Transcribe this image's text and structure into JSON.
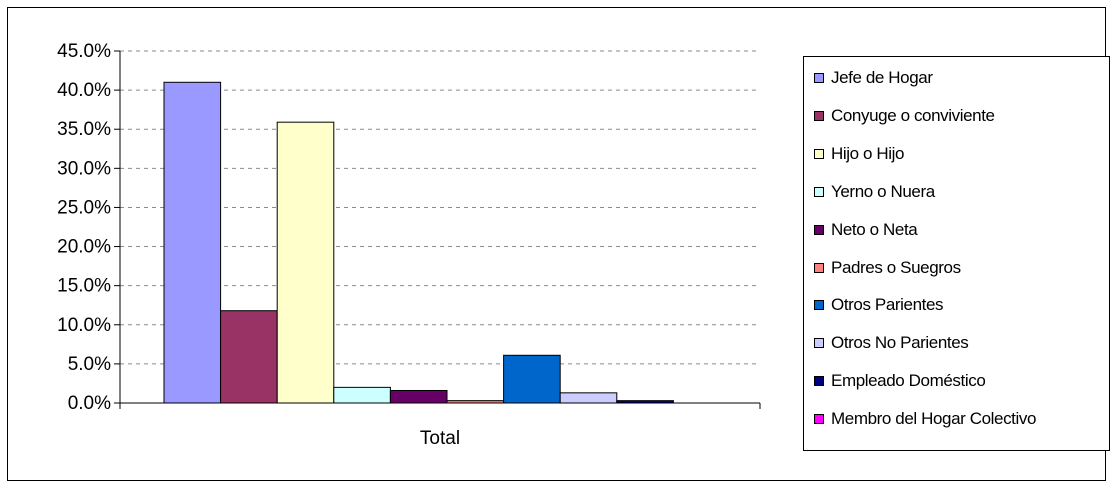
{
  "chart_data": {
    "type": "bar",
    "categories": [
      "Total"
    ],
    "series": [
      {
        "name": "Jefe de Hogar",
        "values": [
          41.0
        ],
        "color": "#9999ff"
      },
      {
        "name": "Conyuge o conviviente",
        "values": [
          11.8
        ],
        "color": "#993366"
      },
      {
        "name": "Hijo o Hijo",
        "values": [
          35.9
        ],
        "color": "#ffffcc"
      },
      {
        "name": "Yerno o Nuera",
        "values": [
          2.0
        ],
        "color": "#ccffff"
      },
      {
        "name": "Neto o Neta",
        "values": [
          1.6
        ],
        "color": "#660066"
      },
      {
        "name": "Padres o Suegros",
        "values": [
          0.3
        ],
        "color": "#ff8080"
      },
      {
        "name": "Otros Parientes",
        "values": [
          6.1
        ],
        "color": "#0066cc"
      },
      {
        "name": "Otros No Parientes",
        "values": [
          1.3
        ],
        "color": "#ccccff"
      },
      {
        "name": "Empleado Doméstico",
        "values": [
          0.3
        ],
        "color": "#000080"
      },
      {
        "name": "Membro del Hogar Colectivo",
        "values": [
          0.0
        ],
        "color": "#ff00ff"
      }
    ],
    "yticks": [
      "0.0%",
      "5.0%",
      "10.0%",
      "15.0%",
      "20.0%",
      "25.0%",
      "30.0%",
      "35.0%",
      "40.0%",
      "45.0%"
    ],
    "ylim": [
      0,
      45
    ],
    "xlabel": "",
    "ylabel": "",
    "title": "",
    "grid": true,
    "legend_position": "right"
  }
}
